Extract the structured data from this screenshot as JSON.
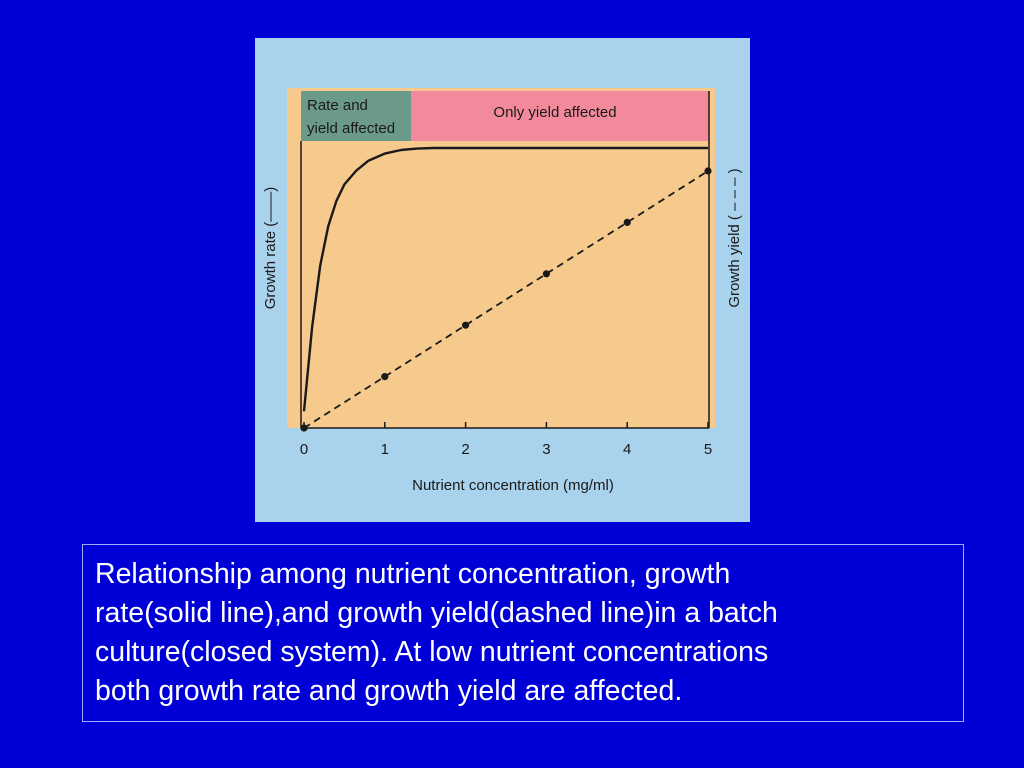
{
  "colors": {
    "slide_background": "#0000d6",
    "figure_background": "#a9d2ec",
    "plot_background": "#f6c98c",
    "band_rate_and_yield": "#6b9a8a",
    "band_only_yield": "#f28a9b",
    "caption_text": "#ffffff"
  },
  "chart_data": {
    "type": "line",
    "title": "",
    "xlabel": "Nutrient concentration (mg/ml)",
    "ylabel_left": "Growth rate (——)",
    "ylabel_right": "Growth yield ( – – – )",
    "xlim": [
      0,
      5
    ],
    "x_ticks": [
      "0",
      "1",
      "2",
      "3",
      "4",
      "5"
    ],
    "y_ticks_shown": false,
    "grid": false,
    "regions": [
      {
        "label_lines": [
          "Rate and",
          "yield affected"
        ],
        "x_range": [
          0,
          1.35
        ]
      },
      {
        "label_lines": [
          "Only yield affected"
        ],
        "x_range": [
          1.35,
          5
        ]
      }
    ],
    "series": [
      {
        "style": "solid",
        "x": [
          0,
          0.1,
          0.2,
          0.3,
          0.4,
          0.5,
          0.65,
          0.8,
          1.0,
          1.2,
          1.4,
          1.6,
          2.0,
          3.0,
          4.0,
          5.0
        ],
        "y": [
          0.06,
          0.36,
          0.58,
          0.72,
          0.81,
          0.87,
          0.92,
          0.955,
          0.98,
          0.993,
          0.998,
          1.0,
          1.0,
          1.0,
          1.0,
          1.0
        ]
      },
      {
        "style": "dashed",
        "markers": true,
        "x": [
          0,
          1,
          2,
          3,
          4,
          5
        ],
        "y": [
          0.0,
          0.2,
          0.4,
          0.6,
          0.8,
          1.0
        ]
      }
    ]
  },
  "caption": {
    "lines": [
      "Relationship among nutrient concentration, growth",
      "rate(solid line),and growth yield(dashed line)in a batch",
      "culture(closed system). At low nutrient concentrations",
      "both growth rate and growth yield are affected."
    ]
  }
}
